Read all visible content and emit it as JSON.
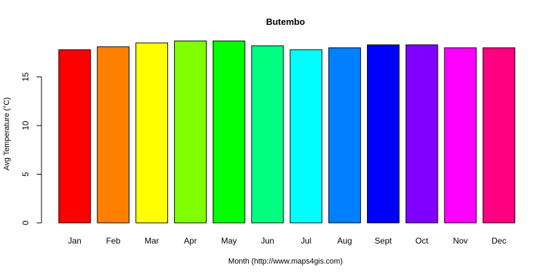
{
  "chart_data": {
    "type": "bar",
    "title": "Butembo",
    "xlabel": "Month (http://www.maps4gis.com)",
    "ylabel": "Avg Temperature (°C)",
    "categories": [
      "Jan",
      "Feb",
      "Mar",
      "Apr",
      "May",
      "Jun",
      "Jul",
      "Aug",
      "Sept",
      "Oct",
      "Nov",
      "Dec"
    ],
    "values": [
      17.8,
      18.1,
      18.5,
      18.7,
      18.7,
      18.2,
      17.8,
      18.0,
      18.3,
      18.3,
      18.0,
      18.0
    ],
    "colors": [
      "#FF0000",
      "#FF8000",
      "#FFFF00",
      "#80FF00",
      "#00FF00",
      "#00FF80",
      "#00FFFF",
      "#0080FF",
      "#0000FF",
      "#8000FF",
      "#FF00FF",
      "#FF0080"
    ],
    "yticks": [
      0,
      5,
      10,
      15
    ],
    "ylim": [
      0,
      19.5
    ],
    "grid": false,
    "legend": "none"
  }
}
